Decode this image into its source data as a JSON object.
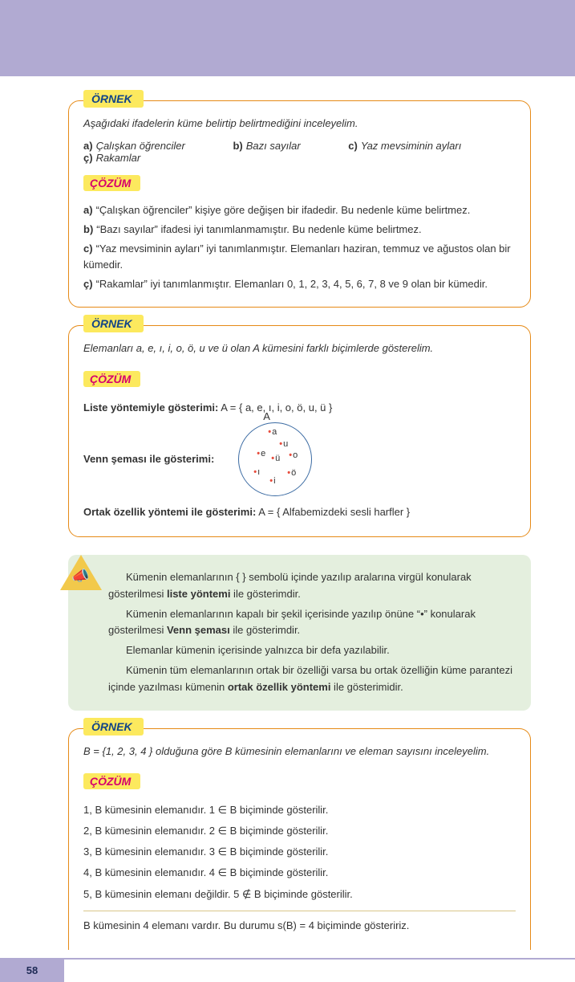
{
  "colors": {
    "banner": "#b1aad2",
    "box_border": "#e68a16",
    "tag_bg": "#fce95e",
    "ornek_color": "#114488",
    "cozum_color": "#d6006c",
    "info_bg": "#e4efde",
    "venn_border": "#3a6aa2",
    "dot_color": "#e74c3c"
  },
  "labels": {
    "ornek": "ÖRNEK",
    "cozum": "ÇÖZÜM"
  },
  "ex1": {
    "intro": "Aşağıdaki ifadelerin küme belirtip belirtmediğini inceleyelim.",
    "opts": [
      {
        "k": "a)",
        "t": "Çalışkan öğrenciler"
      },
      {
        "k": "b)",
        "t": "Bazı sayılar"
      },
      {
        "k": "c)",
        "t": "Yaz mevsiminin ayları"
      },
      {
        "k": "ç)",
        "t": "Rakamlar"
      }
    ],
    "ans": [
      {
        "k": "a)",
        "t": "“Çalışkan öğrenciler” kişiye göre değişen bir ifadedir. Bu nedenle küme belirtmez."
      },
      {
        "k": "b)",
        "t": "“Bazı sayılar” ifadesi iyi tanımlanmamıştır. Bu nedenle küme belirtmez."
      },
      {
        "k": "c)",
        "t": "“Yaz mevsiminin ayları” iyi tanımlanmıştır. Elemanları haziran, temmuz ve ağustos olan bir kümedir."
      },
      {
        "k": "ç)",
        "t": "“Rakamlar” iyi tanımlanmıştır. Elemanları 0, 1, 2, 3, 4, 5, 6, 7, 8 ve 9 olan bir kümedir."
      }
    ]
  },
  "ex2": {
    "intro": "Elemanları a, e, ı, i, o, ö, u ve ü olan A kümesini farklı biçimlerde gösterelim.",
    "liste_label": "Liste yöntemiyle gösterimi:",
    "liste_val": "A  = { a, e, ı, i, o, ö, u, ü }",
    "venn_label": "Venn şeması ile gösterimi:",
    "venn_set_label": "A",
    "venn_points": [
      {
        "t": "a",
        "x": 36,
        "y": 5
      },
      {
        "t": "u",
        "x": 50,
        "y": 20
      },
      {
        "t": "e",
        "x": 22,
        "y": 32
      },
      {
        "t": "ü",
        "x": 40,
        "y": 38
      },
      {
        "t": "o",
        "x": 62,
        "y": 34
      },
      {
        "t": "ı",
        "x": 18,
        "y": 55
      },
      {
        "t": "ö",
        "x": 60,
        "y": 56
      },
      {
        "t": "i",
        "x": 38,
        "y": 66
      }
    ],
    "ortak_label": "Ortak özellik yöntemi ile gösterimi:",
    "ortak_val": "A  = {  Alfabemizdeki sesli harfler }"
  },
  "info": {
    "p1a": "Kümenin elemanlarının {  } sembolü içinde yazılıp aralarına virgül konularak gösterilme­si ",
    "p1b": "liste yöntemi",
    "p1c": " ile gösterimdir.",
    "p2a": "Kümenin elemanlarının kapalı bir şekil içerisinde yazılıp önüne “•” konularak gösterilme­si ",
    "p2b": "Venn şeması",
    "p2c": " ile gösterimdir.",
    "p3": "Elemanlar kümenin içerisinde yalnızca bir defa yazılabilir.",
    "p4a": "Kümenin tüm elemanlarının ortak bir özelliği varsa bu ortak özelliğin küme parantezi içinde yazılması kümenin ",
    "p4b": "ortak özellik yöntemi",
    "p4c": " ile gösterimidir."
  },
  "ex3": {
    "intro_a": "B = {",
    "intro_b": "1, 2, 3, 4",
    "intro_c": " }  olduğuna göre B kümesinin elemanlarını ve eleman sayısını inceleyelim.",
    "rows": [
      "1, B kümesinin elemanıdır. 1 ∈ B biçiminde gösterilir.",
      "2, B kümesinin elemanıdır. 2 ∈ B biçiminde gösterilir.",
      "3, B kümesinin elemanıdır. 3 ∈ B biçiminde gösterilir.",
      "4, B kümesinin elemanıdır. 4 ∈ B biçiminde gösterilir.",
      "5, B kümesinin elemanı değildir. 5 ∉ B biçiminde gösterilir."
    ],
    "final": "B kümesinin 4 elemanı vardır. Bu durumu s(B) = 4 biçiminde gösteririz."
  },
  "page_number": "58"
}
